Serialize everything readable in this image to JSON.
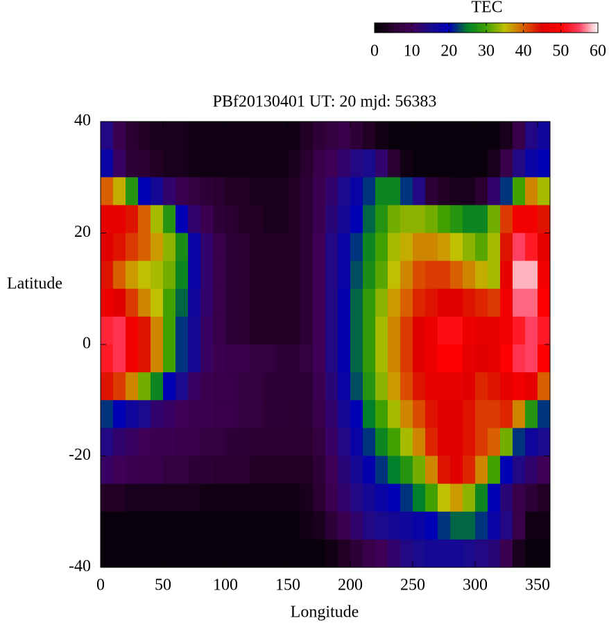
{
  "chart_data": {
    "type": "heatmap",
    "title": "PBf20130401  UT: 20  mjd: 56383",
    "xlabel": "Longitude",
    "ylabel": "Latitude",
    "colorbar_label": "TEC",
    "xlim": [
      0,
      360
    ],
    "ylim": [
      -40,
      40
    ],
    "zlim": [
      0,
      60
    ],
    "xticks": [
      0,
      50,
      100,
      150,
      200,
      250,
      300,
      350
    ],
    "yticks": [
      -40,
      -20,
      0,
      20,
      40
    ],
    "zticks": [
      0,
      10,
      20,
      30,
      40,
      50,
      60
    ],
    "colormap": [
      "#000000",
      "#2a0030",
      "#400058",
      "#1a0a8c",
      "#0000b4",
      "#00802a",
      "#40a000",
      "#c0c000",
      "#d86000",
      "#e00000",
      "#ff0000",
      "#ff4060",
      "#ffffff"
    ],
    "x": [
      5,
      15,
      25,
      35,
      45,
      55,
      65,
      75,
      85,
      95,
      105,
      115,
      125,
      135,
      145,
      155,
      165,
      175,
      185,
      195,
      205,
      215,
      225,
      235,
      245,
      255,
      265,
      275,
      285,
      295,
      305,
      315,
      325,
      335,
      345,
      355
    ],
    "y": [
      37.5,
      32.5,
      27.5,
      22.5,
      17.5,
      12.5,
      7.5,
      2.5,
      -2.5,
      -7.5,
      -12.5,
      -17.5,
      -22.5,
      -27.5,
      -32.5,
      -37.5
    ],
    "z": [
      [
        14,
        9,
        5,
        4,
        3,
        3,
        3,
        2,
        2,
        2,
        2,
        2,
        2,
        2,
        2,
        2,
        4,
        6,
        7,
        8,
        6,
        4,
        2,
        1,
        1,
        1,
        1,
        1,
        1,
        1,
        1,
        1,
        3,
        8,
        14,
        17
      ],
      [
        18,
        11,
        6,
        5,
        4,
        3,
        3,
        2,
        2,
        2,
        2,
        2,
        2,
        2,
        2,
        3,
        5,
        8,
        10,
        12,
        14,
        15,
        12,
        5,
        2,
        1,
        1,
        1,
        1,
        1,
        1,
        3,
        8,
        14,
        18,
        20
      ],
      [
        40,
        36,
        28,
        20,
        16,
        12,
        9,
        7,
        6,
        5,
        4,
        4,
        3,
        3,
        3,
        4,
        6,
        9,
        12,
        15,
        18,
        22,
        26,
        26,
        22,
        14,
        6,
        4,
        3,
        3,
        5,
        12,
        22,
        30,
        38,
        34
      ],
      [
        46,
        46,
        44,
        40,
        34,
        28,
        20,
        12,
        9,
        6,
        5,
        4,
        4,
        3,
        3,
        4,
        6,
        9,
        13,
        16,
        20,
        24,
        28,
        32,
        33,
        33,
        32,
        30,
        28,
        26,
        26,
        32,
        42,
        48,
        48,
        44
      ],
      [
        45,
        44,
        42,
        40,
        37,
        33,
        27,
        18,
        12,
        8,
        6,
        5,
        4,
        4,
        4,
        4,
        6,
        10,
        14,
        18,
        22,
        26,
        30,
        34,
        36,
        38,
        38,
        37,
        35,
        33,
        31,
        34,
        44,
        55,
        52,
        46
      ],
      [
        44,
        40,
        37,
        35,
        34,
        32,
        26,
        18,
        12,
        8,
        6,
        5,
        4,
        4,
        4,
        4,
        6,
        10,
        14,
        18,
        23,
        27,
        31,
        35,
        38,
        41,
        42,
        42,
        40,
        38,
        36,
        34,
        46,
        58,
        58,
        48
      ],
      [
        47,
        45,
        42,
        38,
        35,
        30,
        24,
        17,
        12,
        8,
        6,
        5,
        4,
        4,
        4,
        4,
        6,
        10,
        14,
        19,
        24,
        29,
        33,
        37,
        40,
        43,
        44,
        45,
        45,
        44,
        43,
        42,
        48,
        56,
        56,
        50
      ],
      [
        53,
        54,
        48,
        44,
        38,
        30,
        22,
        16,
        11,
        8,
        6,
        5,
        4,
        4,
        4,
        4,
        6,
        10,
        14,
        19,
        24,
        29,
        34,
        38,
        42,
        45,
        47,
        51,
        51,
        47,
        46,
        46,
        48,
        52,
        55,
        52
      ],
      [
        52,
        54,
        48,
        44,
        38,
        30,
        22,
        16,
        11,
        9,
        8,
        8,
        7,
        7,
        6,
        6,
        7,
        10,
        14,
        19,
        24,
        29,
        34,
        38,
        42,
        45,
        47,
        50,
        50,
        46,
        45,
        46,
        50,
        54,
        55,
        50
      ],
      [
        44,
        42,
        38,
        32,
        26,
        20,
        15,
        11,
        9,
        8,
        8,
        7,
        7,
        6,
        6,
        6,
        6,
        9,
        13,
        18,
        23,
        28,
        33,
        37,
        41,
        44,
        46,
        46,
        46,
        45,
        43,
        44,
        46,
        48,
        46,
        40
      ],
      [
        22,
        20,
        17,
        15,
        12,
        11,
        10,
        9,
        9,
        8,
        8,
        7,
        7,
        6,
        6,
        5,
        6,
        8,
        12,
        16,
        20,
        25,
        30,
        34,
        38,
        41,
        44,
        45,
        45,
        44,
        42,
        42,
        43,
        38,
        28,
        22
      ],
      [
        14,
        12,
        11,
        10,
        9,
        9,
        8,
        8,
        7,
        7,
        6,
        6,
        5,
        5,
        5,
        5,
        5,
        7,
        11,
        14,
        18,
        22,
        26,
        30,
        34,
        38,
        43,
        45,
        45,
        44,
        42,
        40,
        32,
        22,
        17,
        15
      ],
      [
        11,
        10,
        9,
        8,
        8,
        7,
        7,
        6,
        6,
        5,
        5,
        5,
        4,
        4,
        4,
        4,
        4,
        6,
        10,
        13,
        16,
        19,
        22,
        25,
        28,
        32,
        38,
        44,
        45,
        43,
        38,
        30,
        20,
        14,
        12,
        10
      ],
      [
        4,
        4,
        3,
        3,
        3,
        3,
        3,
        3,
        2,
        2,
        2,
        2,
        2,
        2,
        2,
        2,
        3,
        5,
        9,
        12,
        14,
        16,
        18,
        20,
        22,
        25,
        30,
        35,
        37,
        33,
        26,
        20,
        13,
        8,
        6,
        4
      ],
      [
        1,
        1,
        1,
        1,
        1,
        1,
        1,
        1,
        1,
        1,
        1,
        1,
        1,
        1,
        1,
        1,
        2,
        3,
        6,
        9,
        12,
        14,
        15,
        16,
        17,
        18,
        20,
        22,
        24,
        24,
        22,
        18,
        14,
        8,
        2,
        2
      ],
      [
        1,
        1,
        1,
        1,
        1,
        1,
        1,
        1,
        1,
        1,
        1,
        1,
        1,
        1,
        1,
        1,
        1,
        1,
        2,
        4,
        6,
        8,
        10,
        12,
        14,
        15,
        16,
        16,
        16,
        15,
        14,
        13,
        9,
        3,
        1,
        1
      ]
    ]
  }
}
